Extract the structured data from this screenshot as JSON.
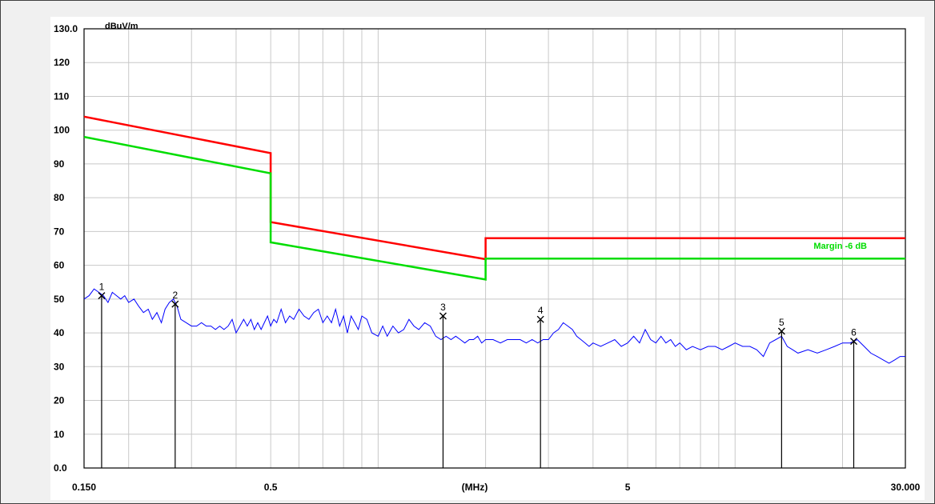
{
  "chart_data": {
    "type": "line",
    "unit_label": "dBuV/m",
    "x_unit_label": "(MHz)",
    "x_scale": "log",
    "xlim": [
      0.15,
      30.0
    ],
    "ylim": [
      0,
      130
    ],
    "grid": true,
    "y_ticks": [
      {
        "value": 130,
        "label": "130.0"
      },
      {
        "value": 120,
        "label": "120"
      },
      {
        "value": 110,
        "label": "110"
      },
      {
        "value": 100,
        "label": "100"
      },
      {
        "value": 90,
        "label": "90"
      },
      {
        "value": 80,
        "label": "80"
      },
      {
        "value": 70,
        "label": "70"
      },
      {
        "value": 60,
        "label": "60"
      },
      {
        "value": 50,
        "label": "50"
      },
      {
        "value": 40,
        "label": "40"
      },
      {
        "value": 30,
        "label": "30"
      },
      {
        "value": 20,
        "label": "20"
      },
      {
        "value": 10,
        "label": "10"
      },
      {
        "value": 0,
        "label": "0.0"
      }
    ],
    "x_ticks": [
      {
        "value": 0.15,
        "label": "0.150"
      },
      {
        "value": 0.5,
        "label": "0.5"
      },
      {
        "value": 5,
        "label": "5"
      },
      {
        "value": 30,
        "label": "30.000"
      }
    ],
    "x_gridlines": [
      0.2,
      0.3,
      0.4,
      0.5,
      0.6,
      0.7,
      0.8,
      0.9,
      1,
      2,
      3,
      4,
      5,
      6,
      7,
      8,
      9,
      10,
      20,
      30
    ],
    "series": [
      {
        "key": "limit",
        "color": "#ff0000",
        "segments": [
          [
            [
              0.15,
              104
            ],
            [
              0.5,
              93.2
            ]
          ],
          [
            [
              0.5,
              72.8
            ],
            [
              2.0,
              61.8
            ]
          ],
          [
            [
              2.0,
              68
            ],
            [
              30.0,
              68
            ]
          ]
        ]
      },
      {
        "key": "margin",
        "name": "Margin -6 dB",
        "color": "#00dd00",
        "segments": [
          [
            [
              0.15,
              98
            ],
            [
              0.5,
              87.2
            ]
          ],
          [
            [
              0.5,
              66.8
            ],
            [
              2.0,
              55.8
            ]
          ],
          [
            [
              2.0,
              62
            ],
            [
              30.0,
              62
            ]
          ]
        ]
      },
      {
        "key": "measurement",
        "color": "#0000ff",
        "points": [
          [
            0.15,
            50
          ],
          [
            0.155,
            51
          ],
          [
            0.16,
            53
          ],
          [
            0.165,
            52
          ],
          [
            0.17,
            51
          ],
          [
            0.175,
            49
          ],
          [
            0.18,
            52
          ],
          [
            0.185,
            51
          ],
          [
            0.19,
            50
          ],
          [
            0.195,
            51
          ],
          [
            0.2,
            49
          ],
          [
            0.207,
            50
          ],
          [
            0.213,
            48
          ],
          [
            0.22,
            46
          ],
          [
            0.227,
            47
          ],
          [
            0.233,
            44
          ],
          [
            0.24,
            46
          ],
          [
            0.247,
            43
          ],
          [
            0.253,
            47
          ],
          [
            0.26,
            49
          ],
          [
            0.267,
            50
          ],
          [
            0.273,
            48
          ],
          [
            0.28,
            44
          ],
          [
            0.29,
            43
          ],
          [
            0.3,
            42
          ],
          [
            0.31,
            42
          ],
          [
            0.32,
            43
          ],
          [
            0.33,
            42
          ],
          [
            0.34,
            42
          ],
          [
            0.35,
            41
          ],
          [
            0.36,
            42
          ],
          [
            0.37,
            41
          ],
          [
            0.38,
            42
          ],
          [
            0.39,
            44
          ],
          [
            0.4,
            40
          ],
          [
            0.41,
            42
          ],
          [
            0.42,
            44
          ],
          [
            0.43,
            42
          ],
          [
            0.44,
            44
          ],
          [
            0.45,
            41
          ],
          [
            0.46,
            43
          ],
          [
            0.47,
            41
          ],
          [
            0.48,
            43
          ],
          [
            0.49,
            45
          ],
          [
            0.5,
            42
          ],
          [
            0.51,
            44
          ],
          [
            0.52,
            43
          ],
          [
            0.535,
            47
          ],
          [
            0.55,
            43
          ],
          [
            0.565,
            45
          ],
          [
            0.58,
            44
          ],
          [
            0.6,
            47
          ],
          [
            0.62,
            45
          ],
          [
            0.64,
            44
          ],
          [
            0.66,
            46
          ],
          [
            0.68,
            47
          ],
          [
            0.7,
            43
          ],
          [
            0.72,
            45
          ],
          [
            0.74,
            43
          ],
          [
            0.76,
            47
          ],
          [
            0.78,
            42
          ],
          [
            0.8,
            45
          ],
          [
            0.82,
            40
          ],
          [
            0.84,
            45
          ],
          [
            0.86,
            43
          ],
          [
            0.88,
            41
          ],
          [
            0.9,
            45
          ],
          [
            0.93,
            44
          ],
          [
            0.96,
            40
          ],
          [
            1.0,
            39
          ],
          [
            1.03,
            42
          ],
          [
            1.06,
            39
          ],
          [
            1.1,
            42
          ],
          [
            1.14,
            40
          ],
          [
            1.18,
            41
          ],
          [
            1.22,
            44
          ],
          [
            1.26,
            42
          ],
          [
            1.3,
            41
          ],
          [
            1.35,
            43
          ],
          [
            1.4,
            42
          ],
          [
            1.45,
            39
          ],
          [
            1.5,
            38
          ],
          [
            1.55,
            39
          ],
          [
            1.6,
            38
          ],
          [
            1.65,
            39
          ],
          [
            1.7,
            38
          ],
          [
            1.75,
            37
          ],
          [
            1.8,
            38
          ],
          [
            1.85,
            38
          ],
          [
            1.9,
            39
          ],
          [
            1.95,
            37
          ],
          [
            2.0,
            38
          ],
          [
            2.05,
            38
          ],
          [
            2.1,
            38
          ],
          [
            2.2,
            37
          ],
          [
            2.3,
            38
          ],
          [
            2.4,
            38
          ],
          [
            2.5,
            38
          ],
          [
            2.6,
            37
          ],
          [
            2.7,
            38
          ],
          [
            2.8,
            37
          ],
          [
            2.9,
            38
          ],
          [
            3.0,
            38
          ],
          [
            3.1,
            40
          ],
          [
            3.2,
            41
          ],
          [
            3.3,
            43
          ],
          [
            3.4,
            42
          ],
          [
            3.5,
            41
          ],
          [
            3.6,
            39
          ],
          [
            3.7,
            38
          ],
          [
            3.8,
            37
          ],
          [
            3.9,
            36
          ],
          [
            4.0,
            37
          ],
          [
            4.2,
            36
          ],
          [
            4.4,
            37
          ],
          [
            4.6,
            38
          ],
          [
            4.8,
            36
          ],
          [
            5.0,
            37
          ],
          [
            5.2,
            39
          ],
          [
            5.4,
            37
          ],
          [
            5.6,
            41
          ],
          [
            5.8,
            38
          ],
          [
            6.0,
            37
          ],
          [
            6.2,
            39
          ],
          [
            6.4,
            37
          ],
          [
            6.6,
            38
          ],
          [
            6.8,
            36
          ],
          [
            7.0,
            37
          ],
          [
            7.3,
            35
          ],
          [
            7.6,
            36
          ],
          [
            8.0,
            35
          ],
          [
            8.4,
            36
          ],
          [
            8.8,
            36
          ],
          [
            9.2,
            35
          ],
          [
            9.6,
            36
          ],
          [
            10.0,
            37
          ],
          [
            10.5,
            36
          ],
          [
            11.0,
            36
          ],
          [
            11.5,
            35
          ],
          [
            12.0,
            33
          ],
          [
            12.5,
            37
          ],
          [
            13.0,
            38
          ],
          [
            13.5,
            39
          ],
          [
            14.0,
            36
          ],
          [
            14.5,
            35
          ],
          [
            15.0,
            34
          ],
          [
            16.0,
            35
          ],
          [
            17.0,
            34
          ],
          [
            18.0,
            35
          ],
          [
            19.0,
            36
          ],
          [
            20.0,
            37
          ],
          [
            21.0,
            37
          ],
          [
            22.0,
            38
          ],
          [
            23.0,
            36
          ],
          [
            24.0,
            34
          ],
          [
            25.0,
            33
          ],
          [
            26.0,
            32
          ],
          [
            27.0,
            31
          ],
          [
            28.0,
            32
          ],
          [
            29.0,
            33
          ],
          [
            30.0,
            33
          ]
        ]
      }
    ],
    "markers": [
      {
        "label": "1",
        "x": 0.168,
        "y": 51
      },
      {
        "label": "2",
        "x": 0.27,
        "y": 48.5
      },
      {
        "label": "3",
        "x": 1.52,
        "y": 45
      },
      {
        "label": "4",
        "x": 2.85,
        "y": 44
      },
      {
        "label": "5",
        "x": 13.5,
        "y": 40.5
      },
      {
        "label": "6",
        "x": 21.5,
        "y": 37.5
      }
    ]
  }
}
